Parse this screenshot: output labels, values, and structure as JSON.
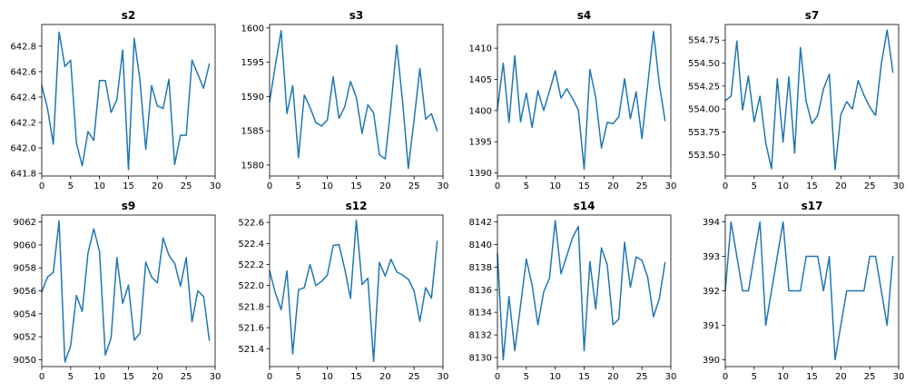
{
  "figure": {
    "line_color": "#1f77b4"
  },
  "chart_data": [
    {
      "type": "line",
      "title": "s2",
      "x": [
        0,
        1,
        2,
        3,
        4,
        5,
        6,
        7,
        8,
        9,
        10,
        11,
        12,
        13,
        14,
        15,
        16,
        17,
        18,
        19,
        20,
        21,
        22,
        23,
        24,
        25,
        26,
        27,
        28,
        29
      ],
      "y": [
        642.49,
        642.31,
        642.03,
        642.91,
        642.64,
        642.69,
        642.04,
        641.86,
        642.13,
        642.06,
        642.53,
        642.53,
        642.28,
        642.38,
        642.77,
        641.83,
        642.86,
        642.53,
        641.99,
        642.49,
        642.33,
        642.31,
        642.54,
        641.87,
        642.1,
        642.1,
        642.69,
        642.58,
        642.47,
        642.66
      ],
      "xlim": [
        0,
        30
      ],
      "ylim": [
        641.78,
        642.97
      ],
      "xticks": [
        0,
        5,
        10,
        15,
        20,
        25,
        30
      ],
      "yticks": [
        641.8,
        642.0,
        642.2,
        642.4,
        642.6,
        642.8
      ],
      "ytick_labels": [
        "641.8",
        "642.0",
        "642.2",
        "642.4",
        "642.6",
        "642.8"
      ]
    },
    {
      "type": "line",
      "title": "s3",
      "x": [
        0,
        1,
        2,
        3,
        4,
        5,
        6,
        7,
        8,
        9,
        10,
        11,
        12,
        13,
        14,
        15,
        16,
        17,
        18,
        19,
        20,
        21,
        22,
        23,
        24,
        25,
        26,
        27,
        28,
        29
      ],
      "y": [
        1589.2,
        1594.6,
        1599.6,
        1587.5,
        1591.6,
        1581.1,
        1590.2,
        1588.4,
        1586.2,
        1585.7,
        1586.6,
        1592.9,
        1586.8,
        1588.5,
        1592.2,
        1589.9,
        1584.6,
        1588.8,
        1587.6,
        1581.5,
        1580.9,
        1588.6,
        1597.5,
        1589.4,
        1579.5,
        1586.6,
        1594.1,
        1586.7,
        1587.5,
        1585.0
      ],
      "xlim": [
        0,
        30
      ],
      "ylim": [
        1578.4,
        1600.5
      ],
      "xticks": [
        0,
        5,
        10,
        15,
        20,
        25,
        30
      ],
      "yticks": [
        1580,
        1585,
        1590,
        1595,
        1600
      ],
      "ytick_labels": [
        "1580",
        "1585",
        "1590",
        "1595",
        "1600"
      ]
    },
    {
      "type": "line",
      "title": "s4",
      "x": [
        0,
        1,
        2,
        3,
        4,
        5,
        6,
        7,
        8,
        9,
        10,
        11,
        12,
        13,
        14,
        15,
        16,
        17,
        18,
        19,
        20,
        21,
        22,
        23,
        24,
        25,
        26,
        27,
        28,
        29
      ],
      "y": [
        1400.2,
        1407.6,
        1398.1,
        1408.8,
        1398.2,
        1402.8,
        1397.3,
        1403.2,
        1400.0,
        1403.1,
        1406.4,
        1402.0,
        1403.5,
        1401.9,
        1400.1,
        1390.6,
        1406.6,
        1402.1,
        1394.0,
        1398.1,
        1397.9,
        1399.0,
        1405.1,
        1398.7,
        1403.0,
        1395.5,
        1404.1,
        1412.7,
        1404.3,
        1398.4
      ],
      "xlim": [
        0,
        30
      ],
      "ylim": [
        1389.5,
        1413.8
      ],
      "xticks": [
        0,
        5,
        10,
        15,
        20,
        25,
        30
      ],
      "yticks": [
        1390,
        1395,
        1400,
        1405,
        1410
      ],
      "ytick_labels": [
        "1390",
        "1395",
        "1400",
        "1405",
        "1410"
      ]
    },
    {
      "type": "line",
      "title": "s7",
      "x": [
        0,
        1,
        2,
        3,
        4,
        5,
        6,
        7,
        8,
        9,
        10,
        11,
        12,
        13,
        14,
        15,
        16,
        17,
        18,
        19,
        20,
        21,
        22,
        23,
        24,
        25,
        26,
        27,
        28,
        29
      ],
      "y": [
        554.09,
        554.14,
        554.74,
        553.99,
        554.36,
        553.86,
        554.14,
        553.63,
        553.35,
        554.33,
        553.64,
        554.35,
        553.52,
        554.67,
        554.08,
        553.84,
        553.93,
        554.22,
        554.38,
        553.34,
        553.94,
        554.08,
        554.0,
        554.31,
        554.15,
        554.02,
        553.93,
        554.49,
        554.86,
        554.4
      ],
      "xlim": [
        0,
        30
      ],
      "ylim": [
        553.27,
        554.92
      ],
      "xticks": [
        0,
        5,
        10,
        15,
        20,
        25,
        30
      ],
      "yticks": [
        553.5,
        553.75,
        554.0,
        554.25,
        554.5,
        554.75
      ],
      "ytick_labels": [
        "553.50",
        "553.75",
        "554.00",
        "554.25",
        "554.50",
        "554.75"
      ]
    },
    {
      "type": "line",
      "title": "s9",
      "x": [
        0,
        1,
        2,
        3,
        4,
        5,
        6,
        7,
        8,
        9,
        10,
        11,
        12,
        13,
        14,
        15,
        16,
        17,
        18,
        19,
        20,
        21,
        22,
        23,
        24,
        25,
        26,
        27,
        28,
        29
      ],
      "y": [
        9055.9,
        9057.2,
        9057.6,
        9062.1,
        9049.8,
        9051.2,
        9055.6,
        9054.2,
        9059.3,
        9061.4,
        9059.4,
        9050.4,
        9051.9,
        9058.9,
        9054.9,
        9056.5,
        9051.7,
        9052.3,
        9058.5,
        9057.2,
        9056.7,
        9060.6,
        9059.1,
        9058.4,
        9056.4,
        9058.9,
        9053.3,
        9056.0,
        9055.5,
        9051.7
      ],
      "xlim": [
        0,
        30
      ],
      "ylim": [
        9049.4,
        9062.6
      ],
      "xticks": [
        0,
        5,
        10,
        15,
        20,
        25,
        30
      ],
      "yticks": [
        9050,
        9052,
        9054,
        9056,
        9058,
        9060,
        9062
      ],
      "ytick_labels": [
        "9050",
        "9052",
        "9054",
        "9056",
        "9058",
        "9060",
        "9062"
      ]
    },
    {
      "type": "line",
      "title": "s12",
      "x": [
        0,
        1,
        2,
        3,
        4,
        5,
        6,
        7,
        8,
        9,
        10,
        11,
        12,
        13,
        14,
        15,
        16,
        17,
        18,
        19,
        20,
        21,
        22,
        23,
        24,
        25,
        26,
        27,
        28,
        29
      ],
      "y": [
        522.14,
        521.93,
        521.77,
        522.14,
        521.35,
        521.96,
        521.98,
        522.2,
        522.0,
        522.04,
        522.1,
        522.38,
        522.39,
        522.16,
        521.88,
        522.62,
        522.01,
        522.07,
        521.28,
        522.22,
        522.09,
        522.25,
        522.13,
        522.1,
        522.06,
        521.95,
        521.66,
        521.98,
        521.88,
        522.42
      ],
      "xlim": [
        0,
        30
      ],
      "ylim": [
        521.23,
        522.67
      ],
      "xticks": [
        0,
        5,
        10,
        15,
        20,
        25,
        30
      ],
      "yticks": [
        521.4,
        521.6,
        521.8,
        522.0,
        522.2,
        522.4,
        522.6
      ],
      "ytick_labels": [
        "521.4",
        "521.6",
        "521.8",
        "522.0",
        "522.2",
        "522.4",
        "522.6"
      ]
    },
    {
      "type": "line",
      "title": "s14",
      "x": [
        0,
        1,
        2,
        3,
        4,
        5,
        6,
        7,
        8,
        9,
        10,
        11,
        12,
        13,
        14,
        15,
        16,
        17,
        18,
        19,
        20,
        21,
        22,
        23,
        24,
        25,
        26,
        27,
        28,
        29
      ],
      "y": [
        8139.2,
        8129.8,
        8135.4,
        8130.6,
        8134.6,
        8138.7,
        8136.4,
        8132.9,
        8135.8,
        8137.0,
        8142.1,
        8137.4,
        8139.0,
        8140.6,
        8141.6,
        8130.6,
        8138.5,
        8134.3,
        8139.7,
        8138.2,
        8132.9,
        8133.4,
        8140.2,
        8136.2,
        8138.9,
        8138.6,
        8137.1,
        8133.6,
        8135.2,
        8138.4
      ],
      "xlim": [
        0,
        30
      ],
      "ylim": [
        8129.2,
        8142.6
      ],
      "xticks": [
        0,
        5,
        10,
        15,
        20,
        25,
        30
      ],
      "yticks": [
        8130,
        8132,
        8134,
        8136,
        8138,
        8140,
        8142
      ],
      "ytick_labels": [
        "8130",
        "8132",
        "8134",
        "8136",
        "8138",
        "8140",
        "8142"
      ]
    },
    {
      "type": "line",
      "title": "s17",
      "x": [
        0,
        1,
        2,
        3,
        4,
        5,
        6,
        7,
        8,
        9,
        10,
        11,
        12,
        13,
        14,
        15,
        16,
        17,
        18,
        19,
        20,
        21,
        22,
        23,
        24,
        25,
        26,
        27,
        28,
        29
      ],
      "y": [
        392,
        394,
        393,
        392,
        392,
        393,
        394,
        391,
        392,
        393,
        394,
        392,
        392,
        392,
        393,
        393,
        393,
        392,
        393,
        390,
        391,
        392,
        392,
        392,
        392,
        393,
        393,
        392,
        391,
        393
      ],
      "xlim": [
        0,
        30
      ],
      "ylim": [
        389.8,
        394.2
      ],
      "xticks": [
        0,
        5,
        10,
        15,
        20,
        25,
        30
      ],
      "yticks": [
        390,
        391,
        392,
        393,
        394
      ],
      "ytick_labels": [
        "390",
        "391",
        "392",
        "393",
        "394"
      ]
    }
  ]
}
